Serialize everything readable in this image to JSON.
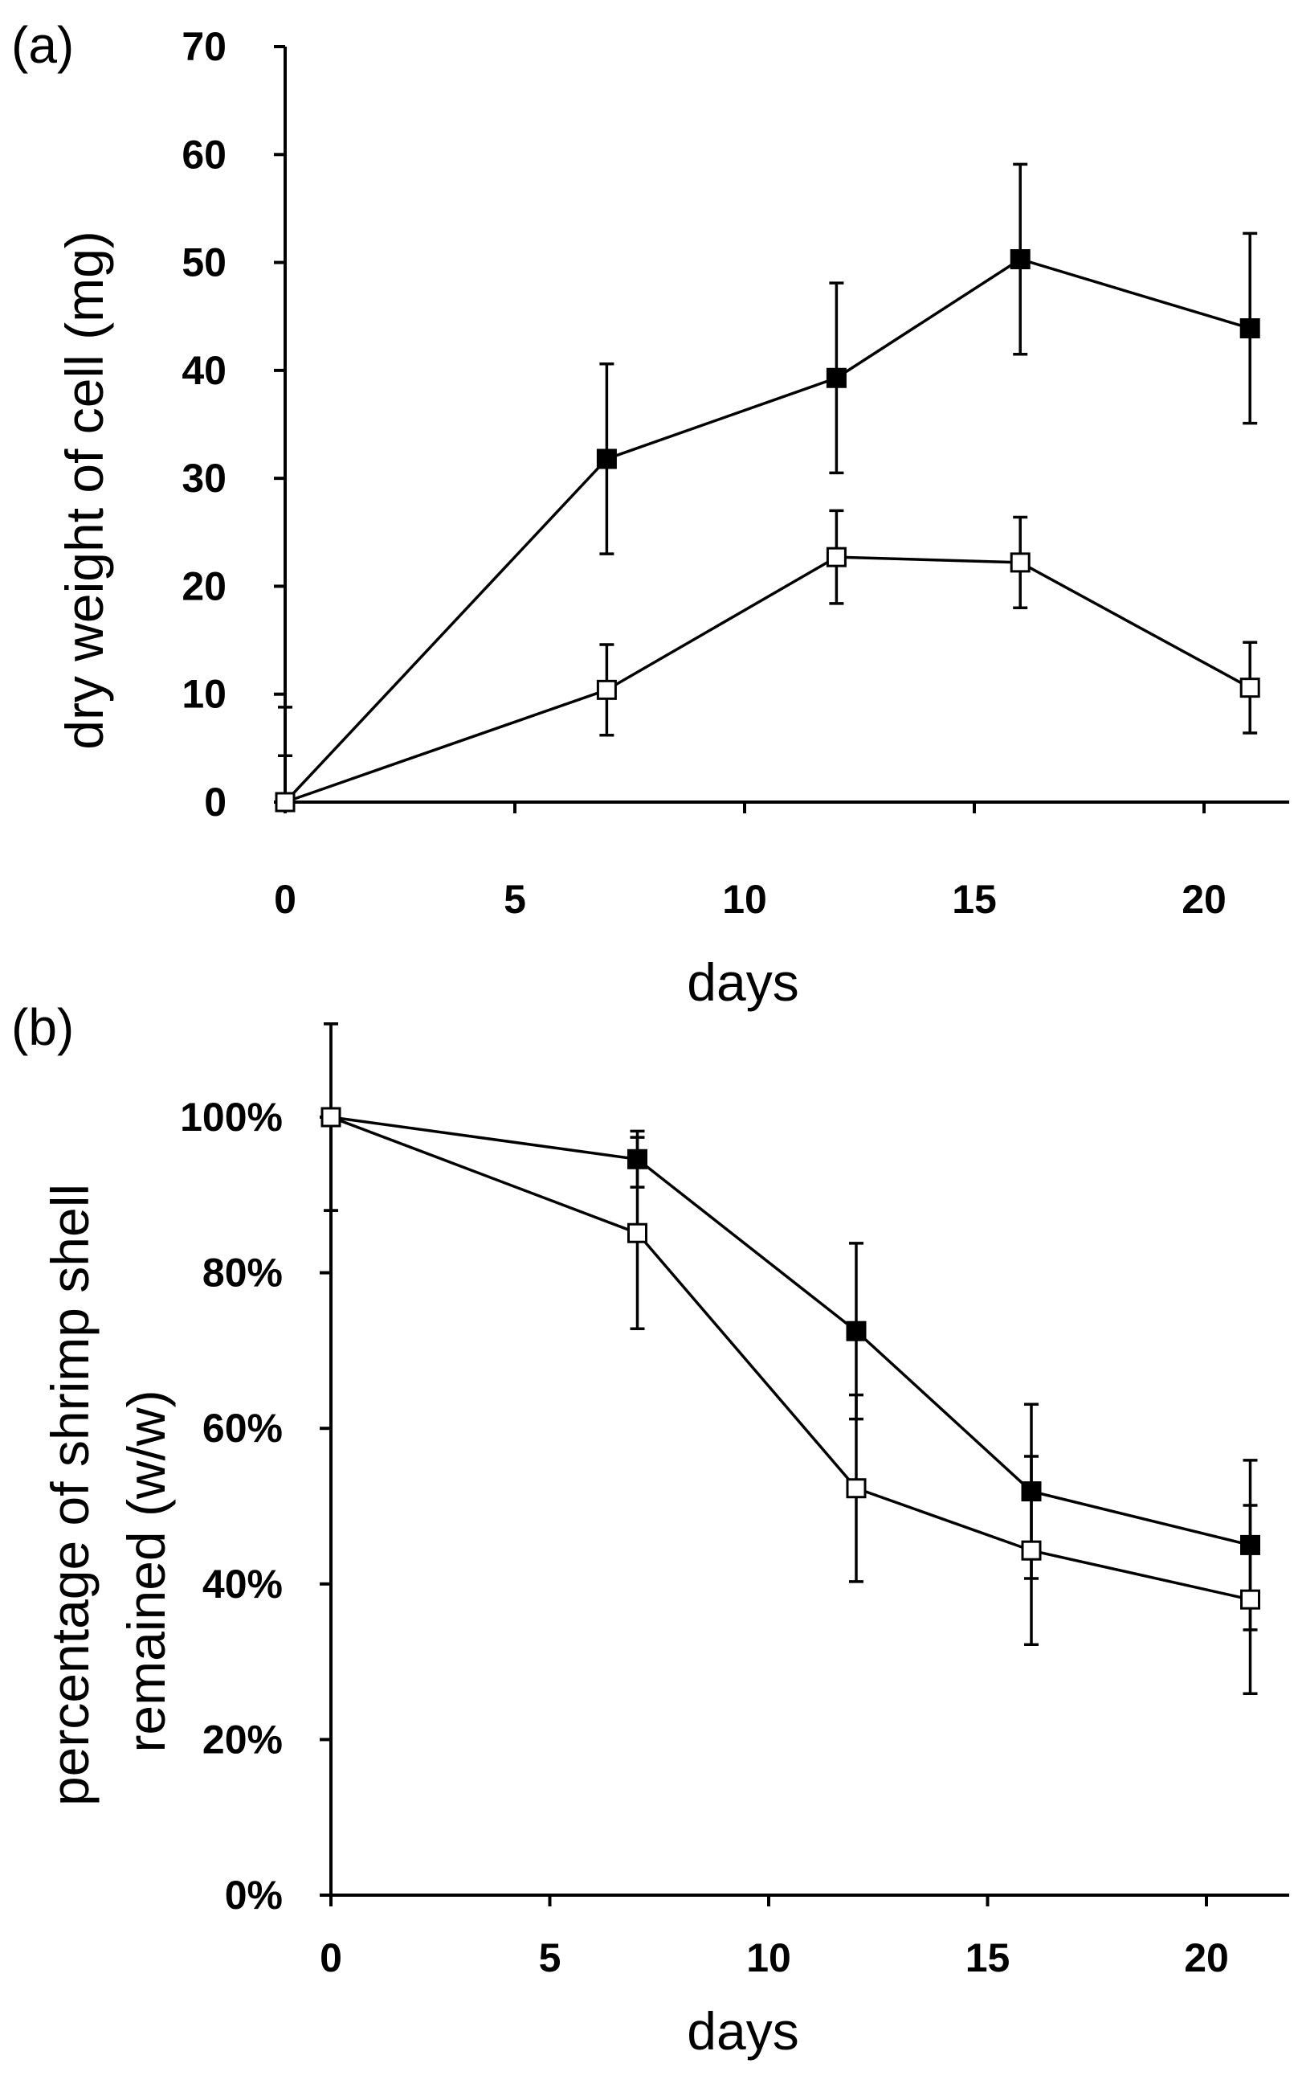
{
  "chart_data": [
    {
      "type": "line",
      "panel_label": "(a)",
      "xlabel": "days",
      "ylabel": "dry weight of cell (mg)",
      "xlim": [
        0,
        22
      ],
      "ylim": [
        0,
        70
      ],
      "x_ticks": [
        0,
        5,
        10,
        15,
        20
      ],
      "y_ticks": [
        0,
        10,
        20,
        30,
        40,
        50,
        60,
        70
      ],
      "x_tick_labels": [
        "0",
        "5",
        "10",
        "15",
        "20"
      ],
      "y_tick_labels": [
        "0",
        "10",
        "20",
        "30",
        "40",
        "50",
        "60",
        "70"
      ],
      "grid": false,
      "series": [
        {
          "marker": "filled-square",
          "x": [
            0,
            7,
            12,
            16,
            21
          ],
          "y": [
            0,
            31.8,
            39.3,
            50.3,
            43.9
          ],
          "err": [
            4.3,
            8.8,
            8.8,
            8.8,
            8.8
          ]
        },
        {
          "marker": "open-square",
          "x": [
            0,
            7,
            12,
            16,
            21
          ],
          "y": [
            0,
            10.4,
            22.7,
            22.2,
            10.6
          ],
          "err": [
            8.8,
            4.2,
            4.3,
            4.2,
            4.2
          ]
        }
      ]
    },
    {
      "type": "line",
      "panel_label": "(b)",
      "xlabel": "days",
      "ylabel": "percentage of shrimp shell remained (w/w)",
      "ylabel_lines": [
        "percentage of shrimp shell",
        "remained (w/w)"
      ],
      "xlim": [
        0,
        21.5
      ],
      "ylim": [
        0,
        100
      ],
      "x_ticks": [
        0,
        5,
        10,
        15,
        20
      ],
      "y_ticks": [
        0,
        20,
        40,
        60,
        80,
        100
      ],
      "x_tick_labels": [
        "0",
        "5",
        "10",
        "15",
        "20"
      ],
      "y_tick_labels": [
        "0%",
        "20%",
        "40%",
        "60%",
        "80%",
        "100%"
      ],
      "grid": false,
      "series": [
        {
          "marker": "filled-square",
          "x": [
            0,
            7,
            12,
            16,
            21
          ],
          "y": [
            100,
            94.6,
            72.5,
            51.9,
            45.0
          ],
          "err": [
            12,
            3.6,
            11.3,
            11.2,
            10.9
          ]
        },
        {
          "marker": "open-square",
          "x": [
            0,
            7,
            12,
            16,
            21
          ],
          "y": [
            100,
            85.1,
            52.3,
            44.3,
            38.0
          ],
          "err": [
            12,
            12.3,
            12.0,
            12.1,
            12.1
          ]
        }
      ]
    }
  ]
}
